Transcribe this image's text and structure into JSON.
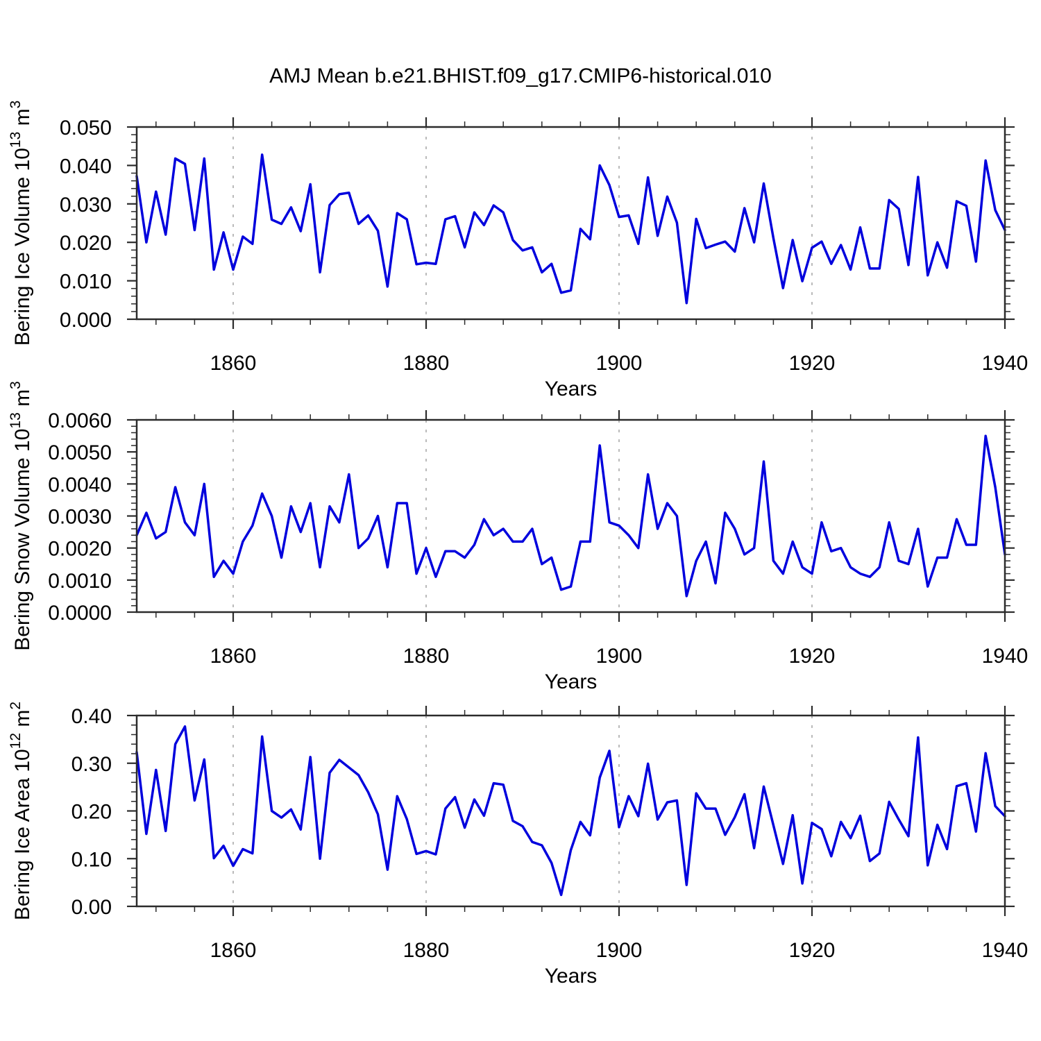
{
  "title": "AMJ Mean b.e21.BHIST.f09_g17.CMIP6-historical.010",
  "styles": {
    "background": "#ffffff",
    "line_color": "#0000dd",
    "frame_color": "#2b2b2b",
    "grid_color": "#a3a3a3",
    "text_color": "#000000"
  },
  "chart_data": [
    {
      "type": "line",
      "panel": "bering-ice-volume",
      "legend": "none",
      "grid": "vertical-dashed",
      "ylabel_segments": [
        {
          "t": "Bering Ice Volume 10"
        },
        {
          "t": "13",
          "sup": true
        },
        {
          "t": " m"
        },
        {
          "t": "3",
          "sup": true
        }
      ],
      "xlabel": "Years",
      "x_start": 1850,
      "x_end": 1940,
      "xticks": [
        1860,
        1880,
        1900,
        1920,
        1940
      ],
      "xtick_labels": [
        "1860",
        "1880",
        "1900",
        "1920",
        "1940"
      ],
      "x_minor_start": 1848,
      "x_minor_step": 4,
      "grid_x": [
        1860,
        1880,
        1900,
        1920
      ],
      "ylim": [
        0.0,
        0.05
      ],
      "yticks": [
        0.0,
        0.01,
        0.02,
        0.03,
        0.04,
        0.05
      ],
      "ytick_labels": [
        "0.000",
        "0.010",
        "0.020",
        "0.030",
        "0.040",
        "0.050"
      ],
      "y_minor_step": 0.002,
      "years_start": 1850,
      "values": [
        0.0372,
        0.02,
        0.0332,
        0.022,
        0.0418,
        0.0404,
        0.0232,
        0.0418,
        0.0129,
        0.0226,
        0.0129,
        0.0215,
        0.0196,
        0.0428,
        0.0259,
        0.0248,
        0.0291,
        0.0229,
        0.0351,
        0.0122,
        0.0297,
        0.0325,
        0.0329,
        0.0248,
        0.027,
        0.023,
        0.0085,
        0.0276,
        0.026,
        0.0143,
        0.0147,
        0.0144,
        0.026,
        0.0268,
        0.0187,
        0.0278,
        0.0245,
        0.0296,
        0.0278,
        0.0206,
        0.0179,
        0.0187,
        0.0122,
        0.0144,
        0.0069,
        0.0075,
        0.0235,
        0.0208,
        0.04,
        0.0349,
        0.0266,
        0.027,
        0.0196,
        0.0369,
        0.0217,
        0.0319,
        0.0251,
        0.0042,
        0.0261,
        0.0185,
        0.0194,
        0.0202,
        0.0176,
        0.0289,
        0.02,
        0.0353,
        0.0211,
        0.0081,
        0.0206,
        0.0099,
        0.0186,
        0.0202,
        0.0144,
        0.0193,
        0.0129,
        0.0239,
        0.0132,
        0.0132,
        0.031,
        0.0287,
        0.0141,
        0.037,
        0.0114,
        0.02,
        0.0134,
        0.0307,
        0.0295,
        0.015,
        0.0413,
        0.0284,
        0.0232
      ]
    },
    {
      "type": "line",
      "panel": "bering-snow-volume",
      "legend": "none",
      "grid": "vertical-dashed",
      "ylabel_segments": [
        {
          "t": "Bering Snow Volume 10"
        },
        {
          "t": "13",
          "sup": true
        },
        {
          "t": " m"
        },
        {
          "t": "3",
          "sup": true
        }
      ],
      "xlabel": "Years",
      "x_start": 1850,
      "x_end": 1940,
      "xticks": [
        1860,
        1880,
        1900,
        1920,
        1940
      ],
      "xtick_labels": [
        "1860",
        "1880",
        "1900",
        "1920",
        "1940"
      ],
      "x_minor_start": 1848,
      "x_minor_step": 4,
      "grid_x": [
        1860,
        1880,
        1900,
        1920
      ],
      "ylim": [
        0.0,
        0.006
      ],
      "yticks": [
        0.0,
        0.001,
        0.002,
        0.003,
        0.004,
        0.005,
        0.006
      ],
      "ytick_labels": [
        "0.0000",
        "0.0010",
        "0.0020",
        "0.0030",
        "0.0040",
        "0.0050",
        "0.0060"
      ],
      "y_minor_step": 0.0002,
      "years_start": 1850,
      "values": [
        0.0024,
        0.0031,
        0.0023,
        0.0025,
        0.0039,
        0.0028,
        0.0024,
        0.004,
        0.0011,
        0.0016,
        0.0012,
        0.0022,
        0.0027,
        0.0037,
        0.003,
        0.0017,
        0.0033,
        0.0025,
        0.0034,
        0.0014,
        0.0033,
        0.0028,
        0.0043,
        0.002,
        0.0023,
        0.003,
        0.0014,
        0.0034,
        0.0034,
        0.0012,
        0.002,
        0.0011,
        0.0019,
        0.0019,
        0.0017,
        0.0021,
        0.0029,
        0.0024,
        0.0026,
        0.0022,
        0.0022,
        0.0026,
        0.0015,
        0.0017,
        0.0007,
        0.0008,
        0.0022,
        0.0022,
        0.0052,
        0.0028,
        0.0027,
        0.0024,
        0.002,
        0.0043,
        0.0026,
        0.0034,
        0.003,
        0.0005,
        0.0016,
        0.0022,
        0.0009,
        0.0031,
        0.0026,
        0.0018,
        0.002,
        0.0047,
        0.0016,
        0.0012,
        0.0022,
        0.0014,
        0.0012,
        0.0028,
        0.0019,
        0.002,
        0.0014,
        0.0012,
        0.0011,
        0.0014,
        0.0028,
        0.0016,
        0.0015,
        0.0026,
        0.0008,
        0.0017,
        0.0017,
        0.0029,
        0.0021,
        0.0021,
        0.0055,
        0.0039,
        0.0018
      ]
    },
    {
      "type": "line",
      "panel": "bering-ice-area",
      "legend": "none",
      "grid": "vertical-dashed",
      "ylabel_segments": [
        {
          "t": "Bering Ice Area 10"
        },
        {
          "t": "12",
          "sup": true
        },
        {
          "t": " m"
        },
        {
          "t": "2",
          "sup": true
        }
      ],
      "xlabel": "Years",
      "x_start": 1850,
      "x_end": 1940,
      "xticks": [
        1860,
        1880,
        1900,
        1920,
        1940
      ],
      "xtick_labels": [
        "1860",
        "1880",
        "1900",
        "1920",
        "1940"
      ],
      "x_minor_start": 1848,
      "x_minor_step": 4,
      "grid_x": [
        1860,
        1880,
        1900,
        1920
      ],
      "ylim": [
        0.0,
        0.4
      ],
      "yticks": [
        0.0,
        0.1,
        0.2,
        0.3,
        0.4
      ],
      "ytick_labels": [
        "0.00",
        "0.10",
        "0.20",
        "0.30",
        "0.40"
      ],
      "y_minor_step": 0.02,
      "years_start": 1850,
      "values": [
        0.323,
        0.152,
        0.286,
        0.158,
        0.34,
        0.377,
        0.222,
        0.308,
        0.101,
        0.127,
        0.085,
        0.12,
        0.111,
        0.356,
        0.2,
        0.186,
        0.203,
        0.161,
        0.313,
        0.1,
        0.28,
        0.307,
        0.291,
        0.275,
        0.239,
        0.193,
        0.077,
        0.231,
        0.183,
        0.11,
        0.116,
        0.109,
        0.205,
        0.229,
        0.165,
        0.224,
        0.19,
        0.258,
        0.255,
        0.179,
        0.168,
        0.135,
        0.128,
        0.091,
        0.024,
        0.118,
        0.177,
        0.149,
        0.27,
        0.326,
        0.166,
        0.231,
        0.189,
        0.299,
        0.182,
        0.218,
        0.222,
        0.045,
        0.237,
        0.205,
        0.205,
        0.15,
        0.187,
        0.235,
        0.122,
        0.251,
        0.17,
        0.089,
        0.191,
        0.048,
        0.175,
        0.162,
        0.105,
        0.177,
        0.143,
        0.19,
        0.095,
        0.111,
        0.219,
        0.182,
        0.147,
        0.354,
        0.086,
        0.171,
        0.12,
        0.252,
        0.258,
        0.157,
        0.321,
        0.21,
        0.189
      ]
    }
  ]
}
